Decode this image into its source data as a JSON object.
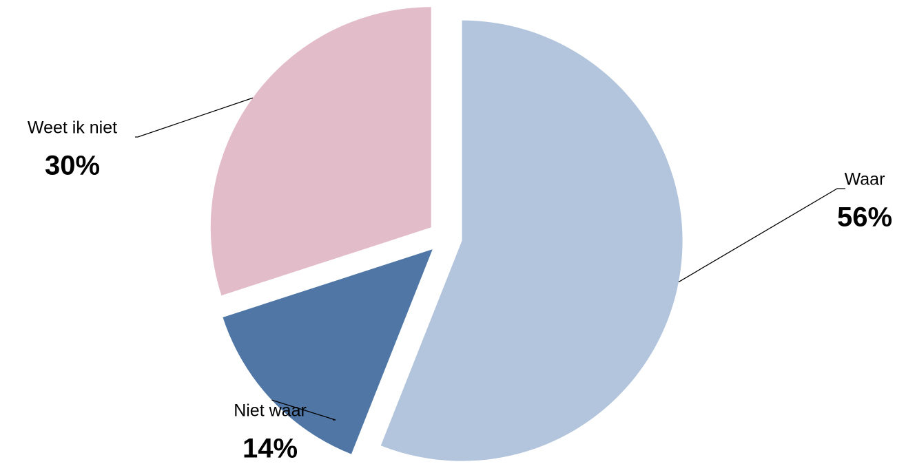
{
  "chart_data": {
    "type": "pie",
    "categories": [
      "Waar",
      "Niet waar",
      "Weet ik niet"
    ],
    "values": [
      56,
      14,
      30
    ],
    "value_labels": [
      "56%",
      "14%",
      "30%"
    ],
    "colors": [
      "#b3c5dc",
      "#4f76a4",
      "#e3bcca"
    ],
    "exploded": true
  }
}
